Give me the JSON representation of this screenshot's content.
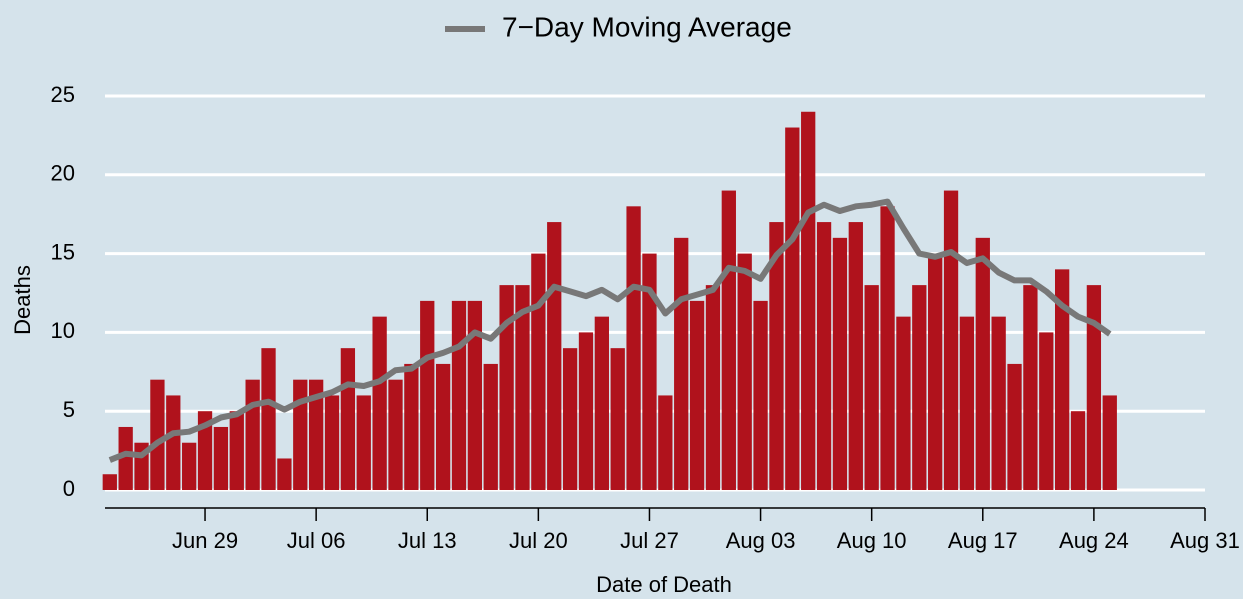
{
  "chart_data": {
    "type": "bar",
    "x": [
      "Jun 23",
      "Jun 24",
      "Jun 25",
      "Jun 26",
      "Jun 27",
      "Jun 28",
      "Jun 29",
      "Jun 30",
      "Jul 01",
      "Jul 02",
      "Jul 03",
      "Jul 04",
      "Jul 05",
      "Jul 06",
      "Jul 07",
      "Jul 08",
      "Jul 09",
      "Jul 10",
      "Jul 11",
      "Jul 12",
      "Jul 13",
      "Jul 14",
      "Jul 15",
      "Jul 16",
      "Jul 17",
      "Jul 18",
      "Jul 19",
      "Jul 20",
      "Jul 21",
      "Jul 22",
      "Jul 23",
      "Jul 24",
      "Jul 25",
      "Jul 26",
      "Jul 27",
      "Jul 28",
      "Jul 29",
      "Jul 30",
      "Jul 31",
      "Aug 01",
      "Aug 02",
      "Aug 03",
      "Aug 04",
      "Aug 05",
      "Aug 06",
      "Aug 07",
      "Aug 08",
      "Aug 09",
      "Aug 10",
      "Aug 11",
      "Aug 12",
      "Aug 13",
      "Aug 14",
      "Aug 15",
      "Aug 16",
      "Aug 17",
      "Aug 18",
      "Aug 19",
      "Aug 20",
      "Aug 21",
      "Aug 22",
      "Aug 23",
      "Aug 24",
      "Aug 25"
    ],
    "series": [
      {
        "type": "bar",
        "color": "#b0121c",
        "values": [
          1,
          4,
          3,
          7,
          6,
          3,
          5,
          4,
          5,
          7,
          9,
          2,
          7,
          7,
          6,
          9,
          6,
          11,
          7,
          8,
          12,
          8,
          12,
          12,
          8,
          13,
          13,
          15,
          17,
          9,
          10,
          11,
          9,
          18,
          15,
          6,
          16,
          12,
          13,
          19,
          15,
          12,
          17,
          23,
          24,
          17,
          16,
          17,
          13,
          18,
          11,
          13,
          15,
          19,
          11,
          16,
          11,
          8,
          13,
          10,
          14,
          5,
          13,
          6
        ]
      },
      {
        "type": "line",
        "name": "7−Day Moving Average",
        "color": "#787878",
        "values": [
          1.9,
          2.3,
          2.2,
          3.0,
          3.6,
          3.7,
          4.1,
          4.6,
          4.8,
          5.4,
          5.6,
          5.1,
          5.6,
          5.9,
          6.2,
          6.7,
          6.6,
          6.9,
          7.6,
          7.7,
          8.4,
          8.7,
          9.1,
          10.0,
          9.6,
          10.6,
          11.3,
          11.7,
          12.9,
          12.6,
          12.3,
          12.7,
          12.1,
          12.9,
          12.7,
          11.2,
          12.1,
          12.4,
          12.7,
          14.1,
          13.9,
          13.4,
          14.9,
          15.9,
          17.6,
          18.1,
          17.7,
          18.0,
          18.1,
          18.3,
          16.6,
          15.0,
          14.8,
          15.1,
          14.4,
          14.7,
          13.8,
          13.3,
          13.3,
          12.6,
          11.7,
          11.0,
          10.6,
          9.9
        ]
      }
    ],
    "xlim": [
      "Jun 23",
      "Aug 31"
    ],
    "xticks": [
      "Jun 29",
      "Jul 06",
      "Jul 13",
      "Jul 20",
      "Jul 27",
      "Aug 03",
      "Aug 10",
      "Aug 17",
      "Aug 24",
      "Aug 31"
    ],
    "ylim": [
      0,
      25
    ],
    "yticks": [
      0,
      5,
      10,
      15,
      20,
      25
    ],
    "xlabel": "Date of Death",
    "ylabel": "Deaths",
    "grid": true,
    "legend": "top"
  }
}
